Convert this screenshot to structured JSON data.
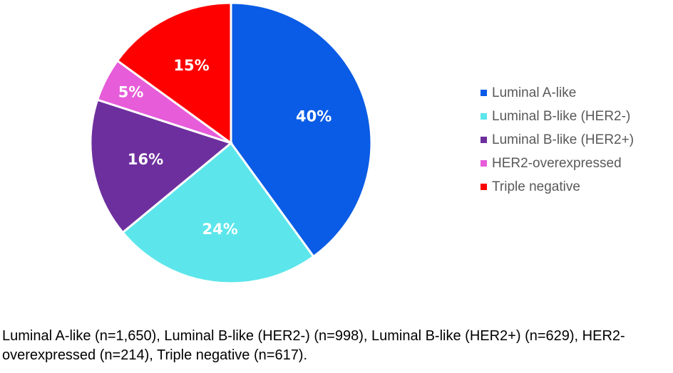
{
  "chart_data": {
    "type": "pie",
    "title": "",
    "categories": [
      "Luminal A-like",
      "Luminal B-like (HER2-)",
      "Luminal B-like (HER2+)",
      "HER2-overexpressed",
      "Triple negative"
    ],
    "values": [
      40,
      24,
      16,
      5,
      15
    ],
    "labels": [
      "40%",
      "24%",
      "16%",
      "5%",
      "15%"
    ],
    "colors": [
      "#0A5CE6",
      "#5CE6EB",
      "#6E2F9E",
      "#E65CD9",
      "#FF0000"
    ],
    "start_angle": "12 o'clock",
    "direction": "clockwise",
    "legend_position": "right"
  },
  "caption": "Luminal A-like (n=1,650), Luminal B-like (HER2-) (n=998), Luminal B-like (HER2+) (n=629), HER2-overexpressed (n=214), Triple negative (n=617)."
}
